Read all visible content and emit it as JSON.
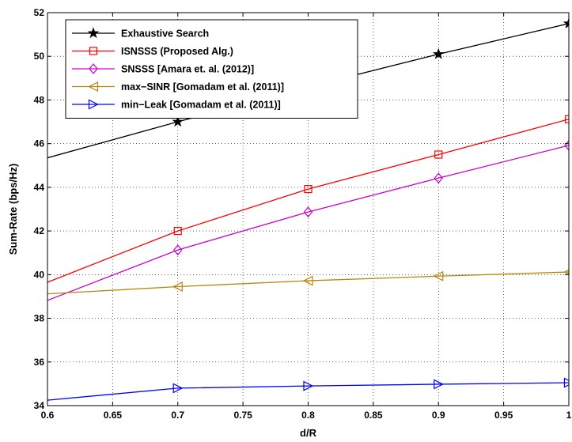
{
  "chart_data": {
    "type": "line",
    "xlabel": "d/R",
    "ylabel": "Sum-Rate (bps/Hz)",
    "xlim": [
      0.6,
      1.0
    ],
    "ylim": [
      34,
      52
    ],
    "xticks": [
      "0.6",
      "0.65",
      "0.7",
      "0.75",
      "0.8",
      "0.85",
      "0.9",
      "0.95",
      "1"
    ],
    "yticks": [
      "34",
      "36",
      "38",
      "40",
      "42",
      "44",
      "46",
      "48",
      "50",
      "52"
    ],
    "grid": true,
    "legend_position": "top-left",
    "series": [
      {
        "name": "Exhaustive Search",
        "color": "#000000",
        "marker": "star",
        "x": [
          0.6,
          0.7,
          0.8,
          0.9,
          1.0
        ],
        "y": [
          45.35,
          47.0,
          48.6,
          50.1,
          51.5
        ]
      },
      {
        "name": "ISNSSS (Proposed Alg.)",
        "color": "#ff0000",
        "marker": "square",
        "x": [
          0.6,
          0.7,
          0.8,
          0.9,
          1.0
        ],
        "y": [
          39.65,
          42.0,
          43.92,
          45.5,
          47.12
        ]
      },
      {
        "name": "SNSSS [Amara et. al. (2012)]",
        "color": "#cc00cc",
        "marker": "diamond",
        "x": [
          0.6,
          0.7,
          0.8,
          0.9,
          1.0
        ],
        "y": [
          38.82,
          41.13,
          42.87,
          44.42,
          45.92
        ]
      },
      {
        "name": "max−SINR [Gomadam et al. (2011)]",
        "color": "#b8860b",
        "marker": "triangle-left",
        "x": [
          0.6,
          0.7,
          0.8,
          0.9,
          1.0
        ],
        "y": [
          39.12,
          39.45,
          39.72,
          39.93,
          40.12
        ]
      },
      {
        "name": "min−Leak [Gomadam et al. (2011)]",
        "color": "#0000ff",
        "marker": "triangle-right",
        "x": [
          0.6,
          0.7,
          0.8,
          0.9,
          1.0
        ],
        "y": [
          34.25,
          34.8,
          34.9,
          34.98,
          35.05
        ]
      }
    ]
  }
}
